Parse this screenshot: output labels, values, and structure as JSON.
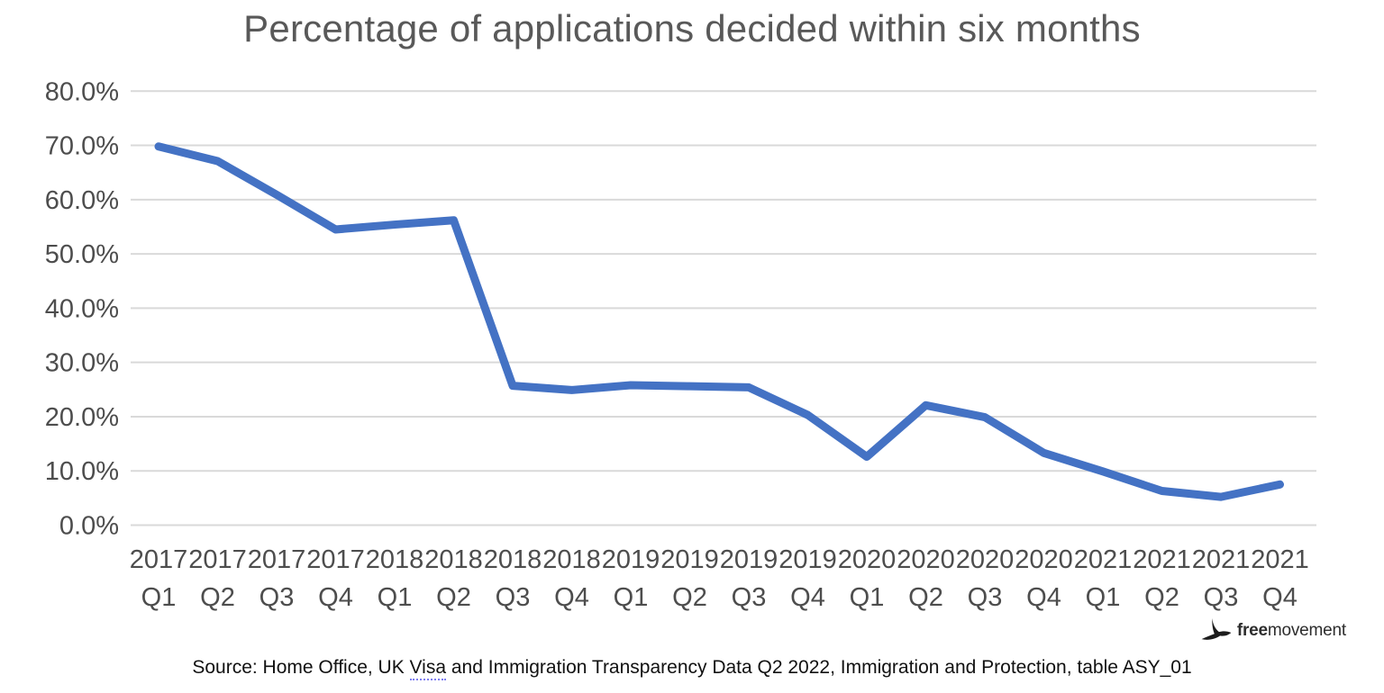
{
  "colors": {
    "line": "#4472C4",
    "gridline": "#D9D9D9",
    "title": "#595959",
    "axis_label": "#4D4D4D",
    "source": "#111111",
    "squiggle": "#7D7DF0",
    "logo": "#222222"
  },
  "chart_data": {
    "type": "line",
    "title": "Percentage of applications decided within six months",
    "x_labels": [
      {
        "year": "2017",
        "quarter": "Q1"
      },
      {
        "year": "2017",
        "quarter": "Q2"
      },
      {
        "year": "2017",
        "quarter": "Q3"
      },
      {
        "year": "2017",
        "quarter": "Q4"
      },
      {
        "year": "2018",
        "quarter": "Q1"
      },
      {
        "year": "2018",
        "quarter": "Q2"
      },
      {
        "year": "2018",
        "quarter": "Q3"
      },
      {
        "year": "2018",
        "quarter": "Q4"
      },
      {
        "year": "2019",
        "quarter": "Q1"
      },
      {
        "year": "2019",
        "quarter": "Q2"
      },
      {
        "year": "2019",
        "quarter": "Q3"
      },
      {
        "year": "2019",
        "quarter": "Q4"
      },
      {
        "year": "2020",
        "quarter": "Q1"
      },
      {
        "year": "2020",
        "quarter": "Q2"
      },
      {
        "year": "2020",
        "quarter": "Q3"
      },
      {
        "year": "2020",
        "quarter": "Q4"
      },
      {
        "year": "2021",
        "quarter": "Q1"
      },
      {
        "year": "2021",
        "quarter": "Q2"
      },
      {
        "year": "2021",
        "quarter": "Q3"
      },
      {
        "year": "2021",
        "quarter": "Q4"
      }
    ],
    "values": [
      69.8,
      67.1,
      60.9,
      54.5,
      55.4,
      56.2,
      25.7,
      24.9,
      25.8,
      25.6,
      25.4,
      20.3,
      12.6,
      22.1,
      19.9,
      13.3,
      9.9,
      6.3,
      5.2,
      7.5
    ],
    "ylim": [
      0,
      80
    ],
    "yticks": [
      {
        "value": 80,
        "label": "80.0%"
      },
      {
        "value": 70,
        "label": "70.0%"
      },
      {
        "value": 60,
        "label": "60.0%"
      },
      {
        "value": 50,
        "label": "50.0%"
      },
      {
        "value": 40,
        "label": "40.0%"
      },
      {
        "value": 30,
        "label": "30.0%"
      },
      {
        "value": 20,
        "label": "20.0%"
      },
      {
        "value": 10,
        "label": "10.0%"
      },
      {
        "value": 0,
        "label": "0.0%"
      }
    ],
    "grid": true,
    "legend": false
  },
  "source": {
    "prefix": "Source: Home Office, UK ",
    "underlined": "Visa",
    "suffix": " and Immigration Transparency Data Q2 2022, Immigration and Protection, table ASY_01"
  },
  "logo": {
    "bold": "free",
    "regular": "movement"
  }
}
